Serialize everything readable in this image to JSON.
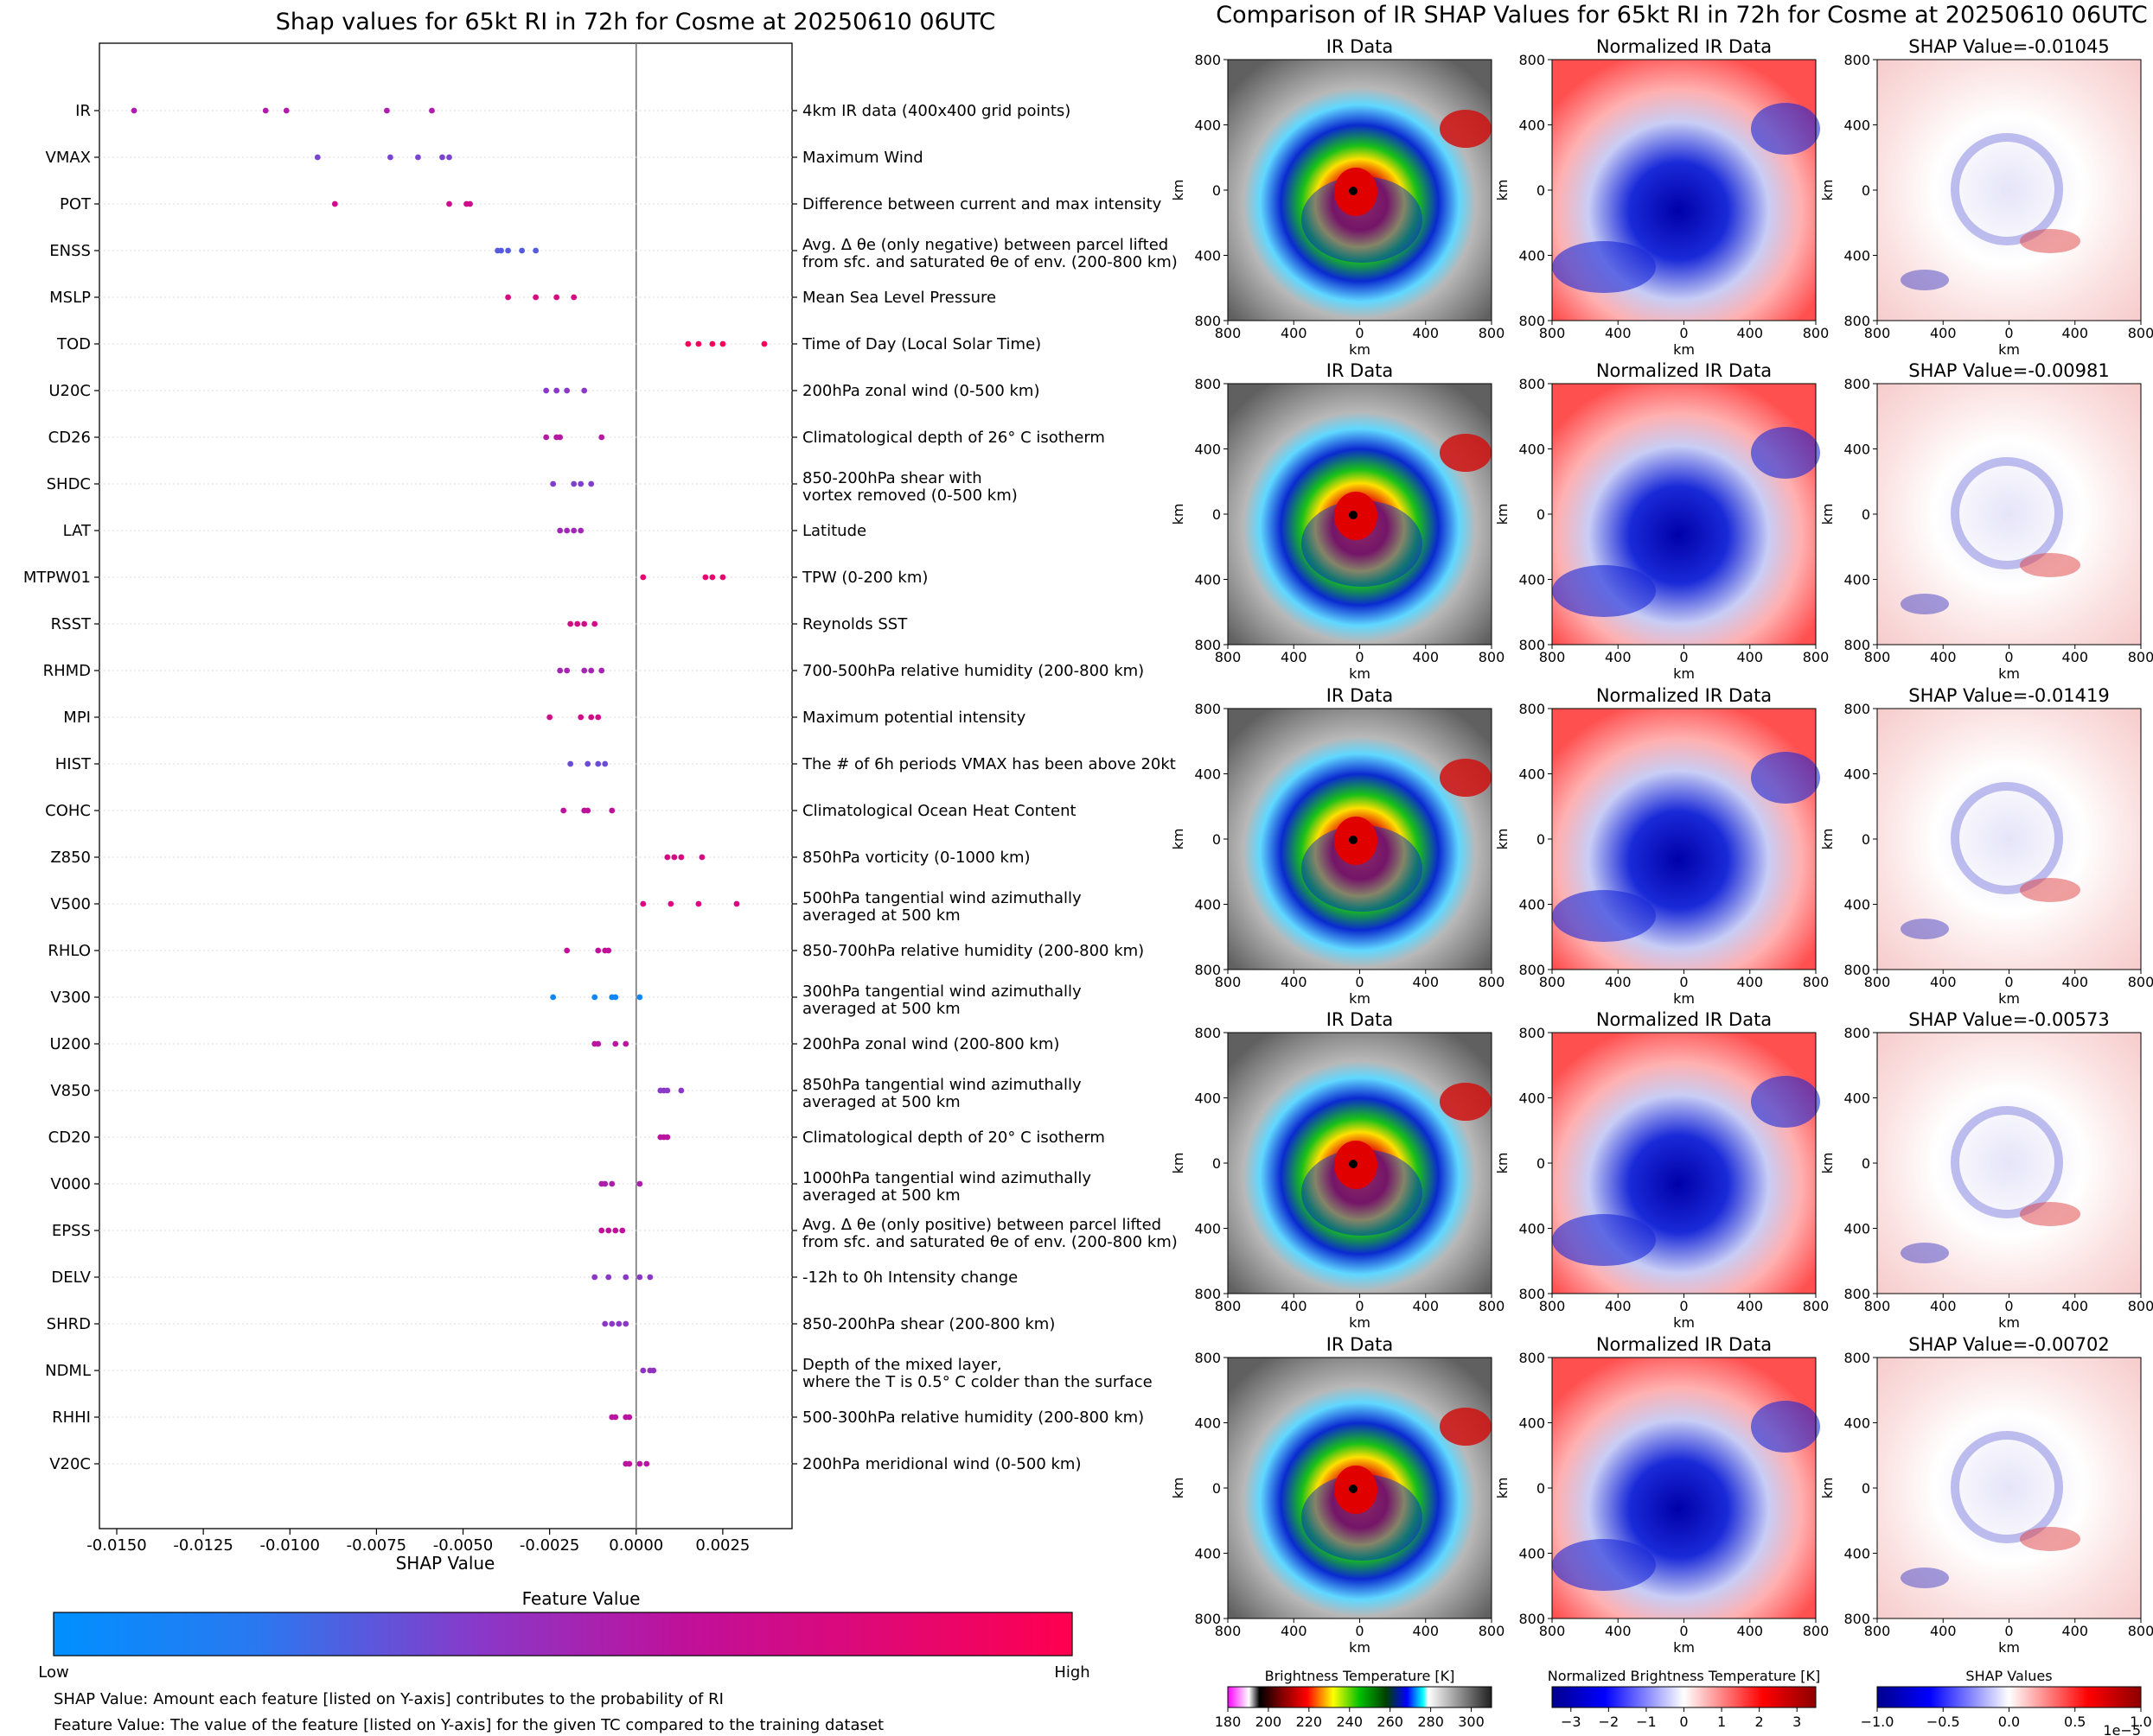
{
  "left_title": "Shap values for 65kt RI in 72h for Cosme at 20250610 06UTC",
  "right_title": "Comparison of IR SHAP Values for 65kt RI in 72h for Cosme at 20250610 06UTC",
  "chart_data": [
    {
      "type": "scatter",
      "title": "Shap values for 65kt RI in 72h for Cosme at 20250610 06UTC",
      "xlabel": "SHAP Value",
      "ylabel": "",
      "xlim": [
        -0.0155,
        0.0045
      ],
      "x_ticks": [
        "-0.0150",
        "-0.0125",
        "-0.0100",
        "-0.0075",
        "-0.0050",
        "-0.0025",
        "0.0000",
        "0.0025"
      ],
      "features": [
        {
          "name": "IR",
          "desc": "4km IR data (400x400 grid points)",
          "shap": [
            -0.0145,
            -0.0107,
            -0.0101,
            -0.0072,
            -0.0059
          ],
          "fv": [
            0.55,
            0.55,
            0.55,
            0.55,
            0.55
          ]
        },
        {
          "name": "VMAX",
          "desc": "Maximum Wind",
          "shap": [
            -0.0092,
            -0.0071,
            -0.0063,
            -0.0056,
            -0.0054
          ],
          "fv": [
            0.38,
            0.38,
            0.38,
            0.38,
            0.38
          ]
        },
        {
          "name": "POT",
          "desc": "Difference between current and max intensity",
          "shap": [
            -0.0087,
            -0.0054,
            -0.0049,
            -0.0048
          ],
          "fv": [
            0.7,
            0.7,
            0.7,
            0.7
          ]
        },
        {
          "name": "ENSS",
          "desc": [
            "Avg. Δ θe (only negative) between parcel lifted",
            "from sfc. and saturated θe of env. (200-800 km)"
          ],
          "shap": [
            -0.004,
            -0.0039,
            -0.0037,
            -0.0033,
            -0.0029
          ],
          "fv": [
            0.3,
            0.3,
            0.3,
            0.3,
            0.3
          ]
        },
        {
          "name": "MSLP",
          "desc": "Mean Sea Level Pressure",
          "shap": [
            -0.0037,
            -0.0029,
            -0.0023,
            -0.0018
          ],
          "fv": [
            0.75,
            0.75,
            0.75,
            0.75
          ]
        },
        {
          "name": "TOD",
          "desc": "Time of Day (Local Solar Time)",
          "shap": [
            0.0015,
            0.0018,
            0.0022,
            0.0025,
            0.0037
          ],
          "fv": [
            0.95,
            0.95,
            0.95,
            0.95,
            0.95
          ]
        },
        {
          "name": "U20C",
          "desc": "200hPa zonal wind (0-500 km)",
          "shap": [
            -0.0026,
            -0.0023,
            -0.002,
            -0.0015
          ],
          "fv": [
            0.42,
            0.42,
            0.42,
            0.42
          ]
        },
        {
          "name": "CD26",
          "desc": "Climatological depth of 26° C isotherm",
          "shap": [
            -0.0026,
            -0.0023,
            -0.0022,
            -0.001
          ],
          "fv": [
            0.58,
            0.58,
            0.58,
            0.58
          ]
        },
        {
          "name": "SHDC",
          "desc": [
            "850-200hPa shear with",
            "vortex removed (0-500 km)"
          ],
          "shap": [
            -0.0024,
            -0.0018,
            -0.0016,
            -0.0013
          ],
          "fv": [
            0.4,
            0.4,
            0.4,
            0.4
          ]
        },
        {
          "name": "LAT",
          "desc": "Latitude",
          "shap": [
            -0.0022,
            -0.002,
            -0.0018,
            -0.0016
          ],
          "fv": [
            0.5,
            0.5,
            0.5,
            0.5
          ]
        },
        {
          "name": "MTPW01",
          "desc": "TPW (0-200 km)",
          "shap": [
            0.0002,
            0.002,
            0.0022,
            0.0025
          ],
          "fv": [
            0.85,
            0.85,
            0.85,
            0.85
          ]
        },
        {
          "name": "RSST",
          "desc": "Reynolds SST",
          "shap": [
            -0.0019,
            -0.0017,
            -0.0015,
            -0.0012
          ],
          "fv": [
            0.72,
            0.72,
            0.72,
            0.72
          ]
        },
        {
          "name": "RHMD",
          "desc": "700-500hPa relative humidity (200-800 km)",
          "shap": [
            -0.0022,
            -0.002,
            -0.0015,
            -0.0013,
            -0.001
          ],
          "fv": [
            0.52,
            0.52,
            0.52,
            0.52,
            0.52
          ]
        },
        {
          "name": "MPI",
          "desc": "Maximum potential intensity",
          "shap": [
            -0.0025,
            -0.0016,
            -0.0013,
            -0.0011
          ],
          "fv": [
            0.72,
            0.72,
            0.72,
            0.72
          ]
        },
        {
          "name": "HIST",
          "desc": "The # of 6h periods VMAX has been above 20kt",
          "shap": [
            -0.0019,
            -0.0014,
            -0.0011,
            -0.0009
          ],
          "fv": [
            0.35,
            0.35,
            0.35,
            0.35
          ]
        },
        {
          "name": "COHC",
          "desc": "Climatological Ocean Heat Content",
          "shap": [
            -0.0021,
            -0.0015,
            -0.0014,
            -0.0007
          ],
          "fv": [
            0.62,
            0.62,
            0.62,
            0.62
          ]
        },
        {
          "name": "Z850",
          "desc": "850hPa vorticity (0-1000 km)",
          "shap": [
            0.0009,
            0.0011,
            0.0013,
            0.0019
          ],
          "fv": [
            0.75,
            0.75,
            0.75,
            0.75
          ]
        },
        {
          "name": "V500",
          "desc": [
            "500hPa tangential wind azimuthally",
            "averaged at 500 km"
          ],
          "shap": [
            0.0002,
            0.001,
            0.0018,
            0.0029
          ],
          "fv": [
            0.75,
            0.75,
            0.75,
            0.75
          ]
        },
        {
          "name": "RHLO",
          "desc": "850-700hPa relative humidity (200-800 km)",
          "shap": [
            -0.002,
            -0.0011,
            -0.0009,
            -0.0008
          ],
          "fv": [
            0.62,
            0.62,
            0.62,
            0.62
          ]
        },
        {
          "name": "V300",
          "desc": [
            "300hPa tangential wind azimuthally",
            "averaged at 500 km"
          ],
          "shap": [
            -0.0024,
            -0.0012,
            -0.0007,
            -0.0006,
            0.0001
          ],
          "fv": [
            0.08,
            0.08,
            0.08,
            0.08,
            0.08
          ]
        },
        {
          "name": "U200",
          "desc": "200hPa zonal wind (200-800 km)",
          "shap": [
            -0.0012,
            -0.0011,
            -0.0006,
            -0.0003
          ],
          "fv": [
            0.6,
            0.6,
            0.6,
            0.6
          ]
        },
        {
          "name": "V850",
          "desc": [
            "850hPa tangential wind azimuthally",
            "averaged at 500 km"
          ],
          "shap": [
            0.0007,
            0.0008,
            0.0009,
            0.0013
          ],
          "fv": [
            0.42,
            0.42,
            0.42,
            0.42
          ]
        },
        {
          "name": "CD20",
          "desc": "Climatological depth of 20° C isotherm",
          "shap": [
            0.0007,
            0.0008,
            0.0009
          ],
          "fv": [
            0.6,
            0.6,
            0.6
          ]
        },
        {
          "name": "V000",
          "desc": [
            "1000hPa tangential wind azimuthally",
            "averaged at 500 km"
          ],
          "shap": [
            -0.001,
            -0.0009,
            -0.0007,
            0.0001
          ],
          "fv": [
            0.55,
            0.55,
            0.55,
            0.55
          ]
        },
        {
          "name": "EPSS",
          "desc": [
            "Avg. Δ θe (only positive) between parcel lifted",
            "from sfc. and saturated θe of env. (200-800 km)"
          ],
          "shap": [
            -0.001,
            -0.0008,
            -0.0006,
            -0.0004
          ],
          "fv": [
            0.62,
            0.62,
            0.62,
            0.62
          ]
        },
        {
          "name": "DELV",
          "desc": "-12h to 0h Intensity change",
          "shap": [
            -0.0012,
            -0.0008,
            -0.0003,
            0.0001,
            0.0004
          ],
          "fv": [
            0.42,
            0.42,
            0.42,
            0.42,
            0.42
          ]
        },
        {
          "name": "SHRD",
          "desc": "850-200hPa shear (200-800 km)",
          "shap": [
            -0.0009,
            -0.0007,
            -0.0005,
            -0.0003
          ],
          "fv": [
            0.42,
            0.42,
            0.42,
            0.42
          ]
        },
        {
          "name": "NDML",
          "desc": [
            "Depth of the mixed layer,",
            "where the T is 0.5° C colder than the surface"
          ],
          "shap": [
            0.0002,
            0.0004,
            0.0005
          ],
          "fv": [
            0.45,
            0.45,
            0.45
          ]
        },
        {
          "name": "RHHI",
          "desc": "500-300hPa relative humidity (200-800 km)",
          "shap": [
            -0.0007,
            -0.0006,
            -0.0003,
            -0.0002
          ],
          "fv": [
            0.6,
            0.6,
            0.6,
            0.6
          ]
        },
        {
          "name": "V20C",
          "desc": "200hPa meridional wind (0-500 km)",
          "shap": [
            -0.0003,
            -0.0002,
            0.0001,
            0.0003
          ],
          "fv": [
            0.6,
            0.6,
            0.6,
            0.6
          ]
        }
      ]
    },
    {
      "type": "heatmap",
      "title": "Comparison of IR SHAP Values for 65kt RI in 72h for Cosme at 20250610 06UTC",
      "column_titles": [
        "IR Data",
        "Normalized IR Data"
      ],
      "shap_titles": [
        "SHAP Value=-0.01045",
        "SHAP Value=-0.00981",
        "SHAP Value=-0.01419",
        "SHAP Value=-0.00573",
        "SHAP Value=-0.00702"
      ],
      "xlabel": "km",
      "ylabel": "km",
      "axis_ticks": [
        "800",
        "400",
        "0",
        "400",
        "800"
      ],
      "colorbars": [
        {
          "label": "Brightness Temperature [K]",
          "ticks": [
            "180",
            "200",
            "220",
            "240",
            "260",
            "280",
            "300"
          ],
          "range": [
            180,
            310
          ]
        },
        {
          "label": "Normalized Brightness Temperature [K]",
          "ticks": [
            "−3",
            "−2",
            "−1",
            "0",
            "1",
            "2",
            "3"
          ],
          "range": [
            -3.5,
            3.5
          ]
        },
        {
          "label": "SHAP Values",
          "ticks": [
            "−1.0",
            "−0.5",
            "0.0",
            "0.5",
            "1.0"
          ],
          "range": [
            -1,
            1
          ],
          "multiplier": "1e−5"
        }
      ]
    }
  ],
  "feature_colorbar": {
    "title": "Feature Value",
    "low": "Low",
    "high": "High"
  },
  "notes": [
    "SHAP Value: Amount each feature [listed on Y-axis] contributes to the probability of RI",
    "Feature Value: The value of the feature [listed on Y-axis] for the given TC compared to the training dataset"
  ],
  "colors": {
    "feature_low": "#0093ff",
    "feature_mid": "#8c2bd0",
    "feature_high": "#ff0055"
  }
}
